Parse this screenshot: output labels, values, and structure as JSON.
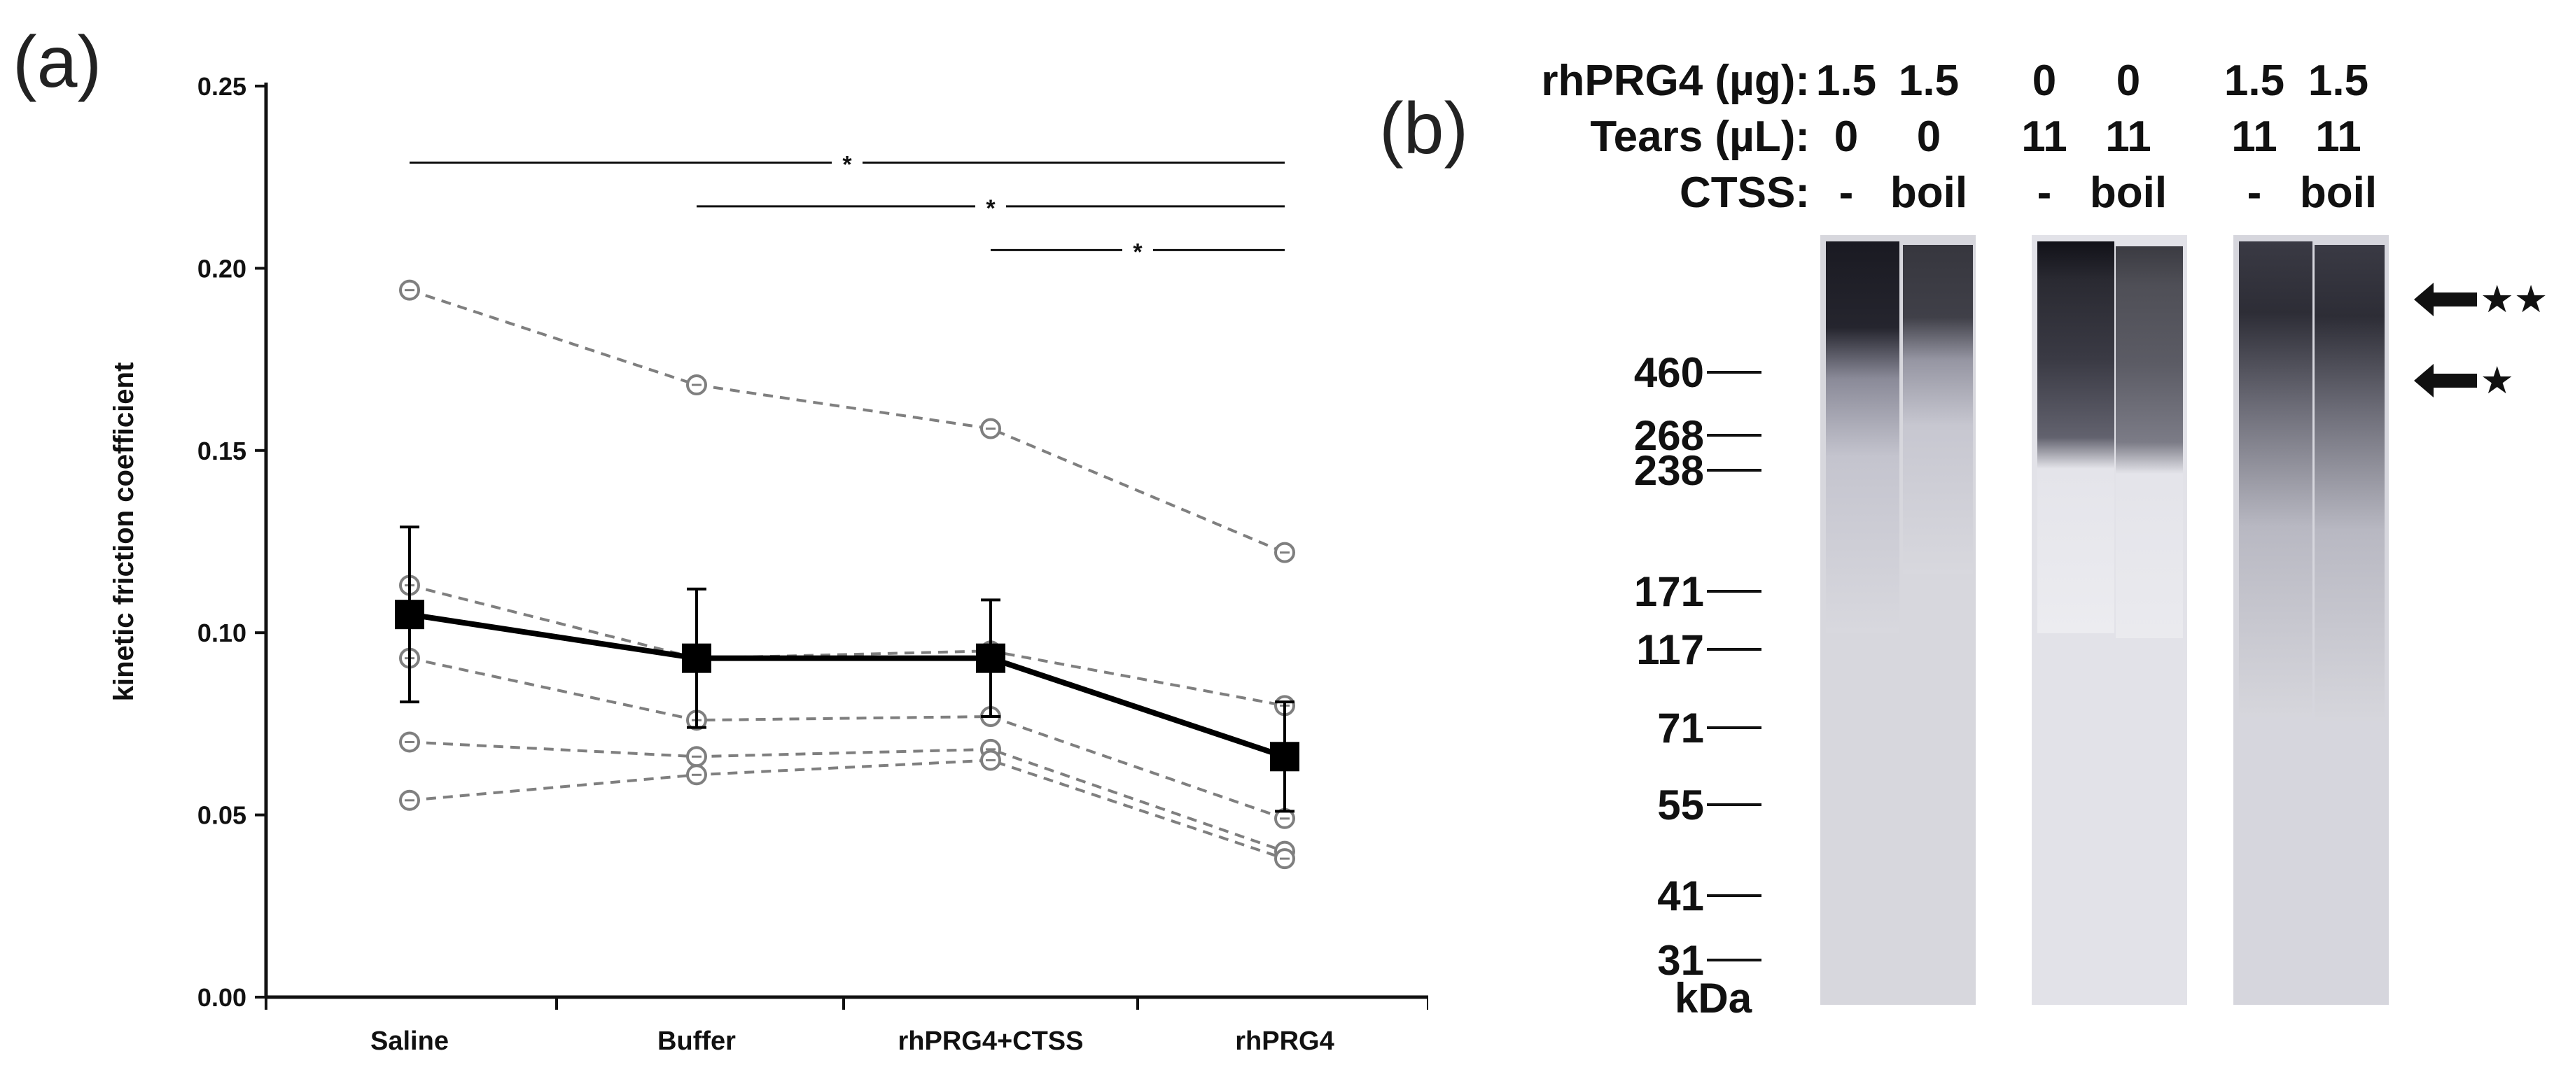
{
  "panel_a": {
    "label": "(a)",
    "chart_data": {
      "type": "line",
      "categories": [
        "Saline",
        "Buffer",
        "rhPRG4+CTSS",
        "rhPRG4"
      ],
      "ylabel": "kinetic friction coefficient",
      "xlabel": "",
      "ylim": [
        0,
        0.25
      ],
      "yticks": [
        "0.00",
        "0.05",
        "0.10",
        "0.15",
        "0.20",
        "0.25"
      ],
      "grid": false,
      "mean": {
        "values": [
          0.105,
          0.093,
          0.093,
          0.066
        ],
        "err": [
          0.024,
          0.019,
          0.016,
          0.015
        ]
      },
      "individuals": [
        [
          0.194,
          0.168,
          0.156,
          0.122
        ],
        [
          0.113,
          0.093,
          0.095,
          0.08
        ],
        [
          0.093,
          0.076,
          0.077,
          0.049
        ],
        [
          0.07,
          0.066,
          0.068,
          0.04
        ],
        [
          0.054,
          0.061,
          0.065,
          0.038
        ]
      ],
      "significance": [
        {
          "from": 0,
          "to": 3,
          "y": 0.229,
          "label": "*"
        },
        {
          "from": 1,
          "to": 3,
          "y": 0.217,
          "label": "*"
        },
        {
          "from": 2,
          "to": 3,
          "y": 0.205,
          "label": "*"
        }
      ],
      "colors": {
        "mean": "#000000",
        "individual": "#7f7f7f"
      }
    }
  },
  "panel_b": {
    "label": "(b)",
    "header": {
      "rows": [
        {
          "label": "rhPRG4 (µg):",
          "values": [
            "1.5",
            "1.5",
            "0",
            "0",
            "1.5",
            "1.5"
          ]
        },
        {
          "label": "Tears (µL):",
          "values": [
            "0",
            "0",
            "11",
            "11",
            "11",
            "11"
          ]
        },
        {
          "label": "CTSS:",
          "values": [
            "-",
            "boil",
            "-",
            "boil",
            "-",
            "boil"
          ]
        }
      ]
    },
    "markers": [
      "460",
      "268",
      "238",
      "171",
      "117",
      "71",
      "55",
      "41",
      "31"
    ],
    "unit": "kDa",
    "arrow_labels": [
      "★★",
      "★"
    ]
  }
}
